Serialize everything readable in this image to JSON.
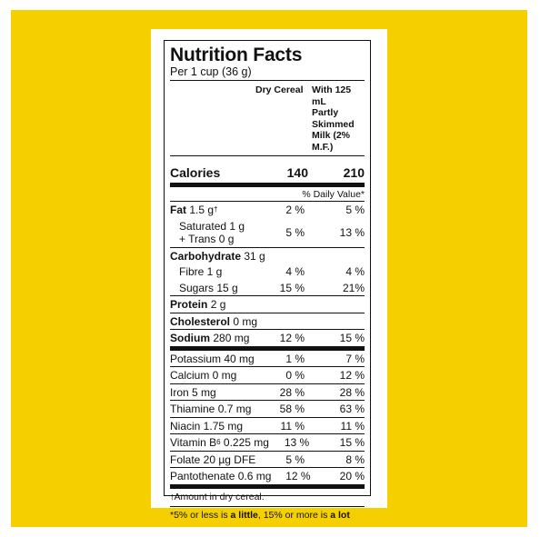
{
  "title": "Nutrition Facts",
  "serving": "Per 1 cup (36 g)",
  "columns": {
    "col1": "Dry Cereal",
    "col2_line1": "With 125 mL",
    "col2_line2": "Partly",
    "col2_line3": "Skimmed",
    "col2_line4": "Milk (2% M.F.)"
  },
  "calories": {
    "label": "Calories",
    "v1": "140",
    "v2": "210"
  },
  "dv_header": "% Daily Value*",
  "fat": {
    "name": "Fat",
    "amount": "1.5 g",
    "mark": "†",
    "v1": "2 %",
    "v2": "5 %"
  },
  "saturated": {
    "line1": "Saturated 1 g",
    "line2": "+ Trans 0 g",
    "v1": "5 %",
    "v2": "13 %"
  },
  "carb": {
    "name": "Carbohydrate",
    "amount": "31 g"
  },
  "fibre": {
    "label": "Fibre 1 g",
    "v1": "4 %",
    "v2": "4 %"
  },
  "sugars": {
    "label": "Sugars 15 g",
    "v1": "15 %",
    "v2": "21%"
  },
  "protein": {
    "name": "Protein",
    "amount": "2 g"
  },
  "cholesterol": {
    "name": "Cholesterol",
    "amount": "0 mg"
  },
  "sodium": {
    "name": "Sodium",
    "amount": "280 mg",
    "v1": "12 %",
    "v2": "15 %"
  },
  "minerals": [
    {
      "label": "Potassium 40 mg",
      "v1": "1 %",
      "v2": "7 %"
    },
    {
      "label": "Calcium 0 mg",
      "v1": "0 %",
      "v2": "12 %"
    },
    {
      "label": "Iron 5 mg",
      "v1": "28 %",
      "v2": "28 %"
    },
    {
      "label": "Thiamine 0.7 mg",
      "v1": "58 %",
      "v2": "63 %"
    },
    {
      "label": "Niacin 1.75 mg",
      "v1": "11 %",
      "v2": "11 %"
    }
  ],
  "vitb6": {
    "pre": "Vitamin B",
    "sub": "6",
    "post": " 0.225 mg",
    "v1": "13 %",
    "v2": "15 %"
  },
  "folate": {
    "label": "Folate 20 µg DFE",
    "v1": "5 %",
    "v2": "8 %"
  },
  "panto": {
    "label": "Pantothenate 0.6 mg",
    "v1": "12 %",
    "v2": "20 %"
  },
  "footnote1": {
    "mark": "†",
    "text": "Amount in dry cereal."
  },
  "footnote2": {
    "a": "*5% or less is ",
    "b": "a little",
    "c": ", 15% or more is ",
    "d": "a lot"
  },
  "colors": {
    "background": "#f6cf00",
    "panel": "#ffffff",
    "ink": "#111111"
  }
}
